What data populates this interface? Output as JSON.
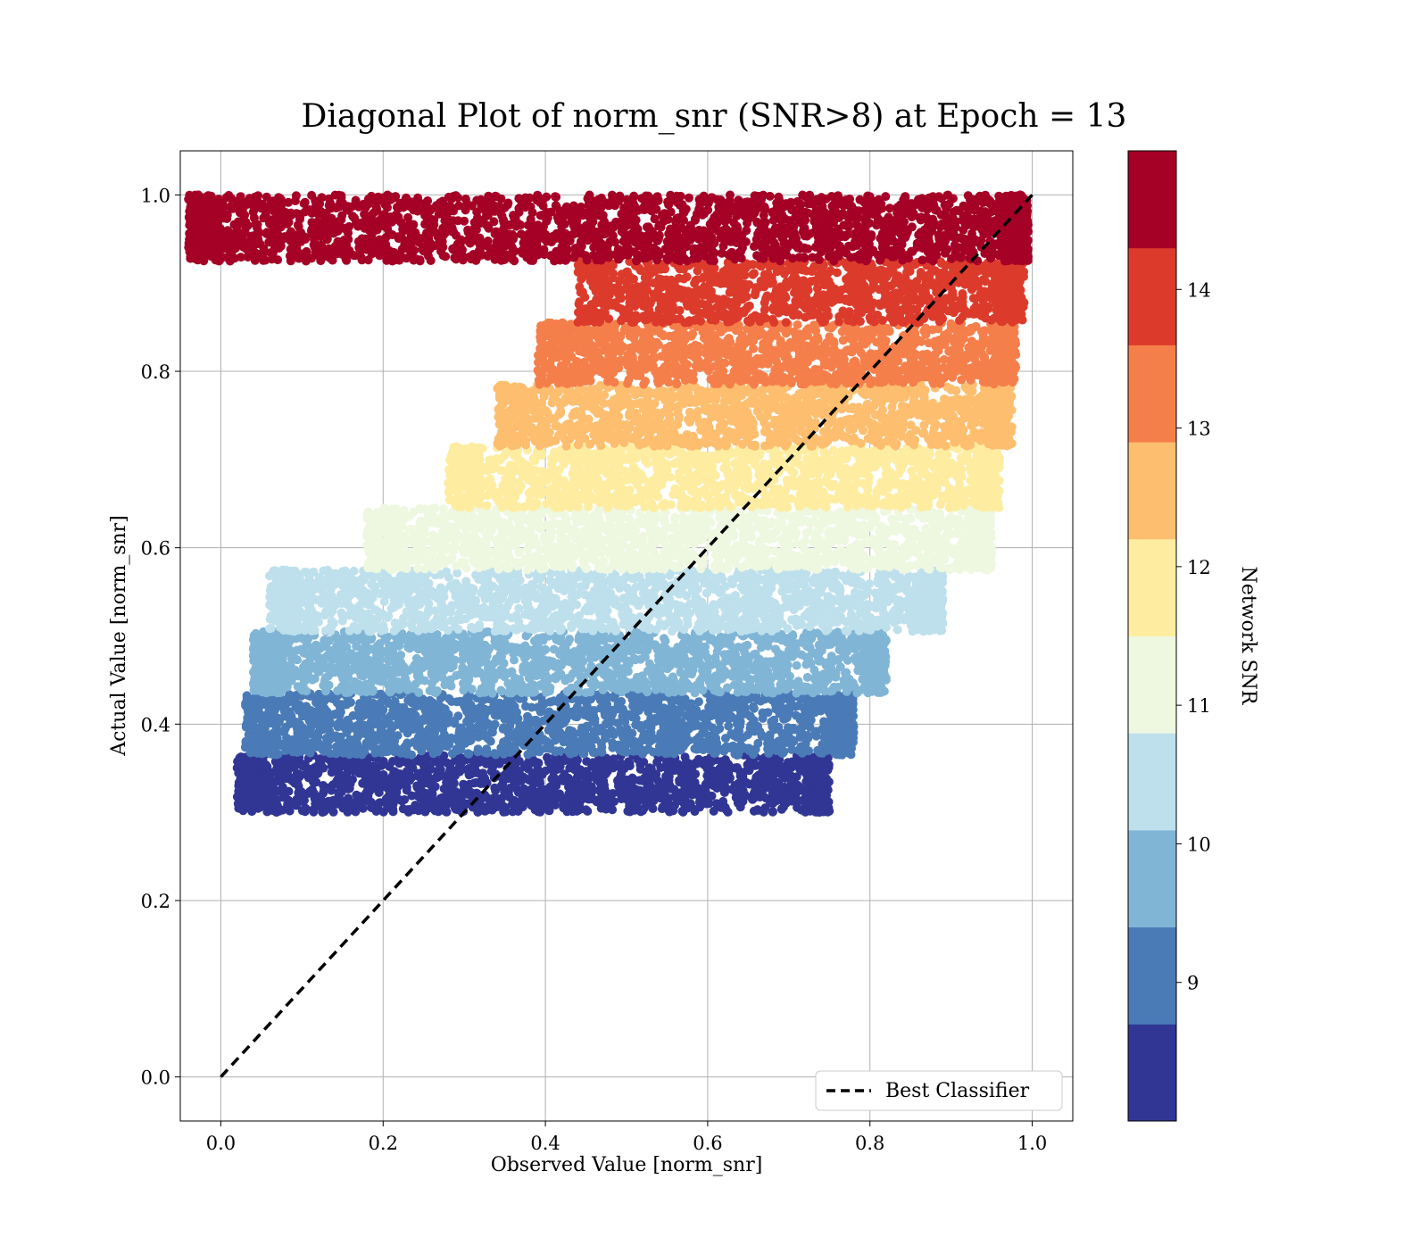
{
  "chart_data": {
    "type": "scatter",
    "title": "Diagonal Plot of norm_snr (SNR>8) at Epoch = 13",
    "xlabel": "Observed Value [norm_snr]",
    "ylabel": "Actual Value [norm_snr]",
    "xlim": [
      -0.05,
      1.05
    ],
    "ylim": [
      -0.05,
      1.05
    ],
    "xticks": [
      "0.0",
      "0.2",
      "0.4",
      "0.6",
      "0.8",
      "1.0"
    ],
    "yticks": [
      "0.0",
      "0.2",
      "0.4",
      "0.6",
      "0.8",
      "1.0"
    ],
    "grid": true,
    "legend": {
      "position": "lower-right",
      "entries": [
        "Best Classifier"
      ]
    },
    "reference_line": {
      "name": "Best Classifier",
      "style": "dashed",
      "color": "#000000",
      "x": [
        0,
        1
      ],
      "y": [
        0,
        1
      ]
    },
    "colorbar": {
      "label": "Network SNR",
      "range": [
        8,
        15
      ],
      "ticks": [
        "9",
        "10",
        "11",
        "12",
        "13",
        "14"
      ],
      "colormap": "RdYlBu_r",
      "colors": [
        "#313695",
        "#4a7bb7",
        "#81b5d6",
        "#bee0ec",
        "#eef7e0",
        "#feeda1",
        "#fdbe6f",
        "#f57f4b",
        "#dc3b2c",
        "#a50026"
      ]
    },
    "bands": [
      {
        "color": "#313695",
        "y_range": [
          0.3,
          0.365
        ],
        "x_range": [
          0.06,
          0.72
        ]
      },
      {
        "color": "#4a7bb7",
        "y_range": [
          0.365,
          0.435
        ],
        "x_range": [
          0.07,
          0.75
        ]
      },
      {
        "color": "#81b5d6",
        "y_range": [
          0.435,
          0.505
        ],
        "x_range": [
          0.08,
          0.79
        ]
      },
      {
        "color": "#bee0ec",
        "y_range": [
          0.505,
          0.575
        ],
        "x_range": [
          0.1,
          0.86
        ]
      },
      {
        "color": "#eef7e0",
        "y_range": [
          0.575,
          0.645
        ],
        "x_range": [
          0.22,
          0.92
        ]
      },
      {
        "color": "#feeda1",
        "y_range": [
          0.645,
          0.715
        ],
        "x_range": [
          0.32,
          0.93
        ]
      },
      {
        "color": "#fdbe6f",
        "y_range": [
          0.715,
          0.785
        ],
        "x_range": [
          0.38,
          0.945
        ]
      },
      {
        "color": "#f57f4b",
        "y_range": [
          0.785,
          0.855
        ],
        "x_range": [
          0.43,
          0.95
        ]
      },
      {
        "color": "#dc3b2c",
        "y_range": [
          0.855,
          0.925
        ],
        "x_range": [
          0.48,
          0.96
        ]
      },
      {
        "color": "#a50026",
        "y_range": [
          0.925,
          1.0
        ],
        "x_range": [
          0.0,
          0.965
        ]
      }
    ]
  }
}
